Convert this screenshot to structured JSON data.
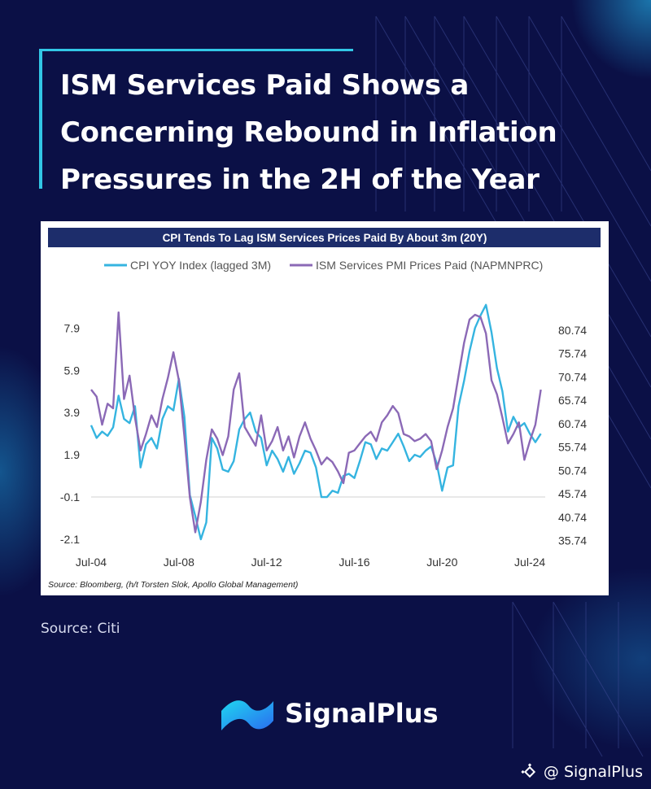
{
  "headline": "ISM Services Paid Shows a\nConcerning Rebound in Inflation\nPressures in the 2H of the Year",
  "source_caption": "Source: Citi",
  "brand": {
    "name": "SignalPlus",
    "logo_icon": "signalplus-wave-logo-icon"
  },
  "handle": {
    "icon": "binance-square-icon",
    "text": "@ SignalPlus"
  },
  "colors": {
    "background": "#0b1046",
    "accent": "#32c7e6",
    "chart_header_bg": "#1d2d6b",
    "cpi_series": "#35b4e0",
    "ism_series": "#8b69b6"
  },
  "chart_data": {
    "type": "line",
    "title": "CPI Tends To Lag ISM Services Prices Paid By About 3m (20Y)",
    "footnote": "Source: Bloomberg, (h/t Torsten Slok, Apollo Global Management)",
    "x_ticks": [
      "Jul-04",
      "Jul-08",
      "Jul-12",
      "Jul-16",
      "Jul-20",
      "Jul-24"
    ],
    "x_range": [
      2004.5,
      2025.2
    ],
    "left_axis": {
      "ticks": [
        "7.9",
        "5.9",
        "3.9",
        "1.9",
        "-0.1",
        "-2.1"
      ],
      "range": [
        -2.6,
        9.8
      ]
    },
    "right_axis": {
      "ticks": [
        "80.74",
        "75.74",
        "70.74",
        "65.74",
        "60.74",
        "55.74",
        "50.74",
        "45.74",
        "40.74",
        "35.74"
      ],
      "range": [
        33.74,
        89.74
      ]
    },
    "legend_position": "top",
    "series": [
      {
        "name": "CPI YOY Index (lagged 3M)",
        "axis": "left",
        "points": [
          [
            2004.5,
            3.3
          ],
          [
            2004.75,
            2.7
          ],
          [
            2005.0,
            3.0
          ],
          [
            2005.25,
            2.8
          ],
          [
            2005.5,
            3.2
          ],
          [
            2005.75,
            4.7
          ],
          [
            2006.0,
            3.6
          ],
          [
            2006.25,
            3.4
          ],
          [
            2006.5,
            4.2
          ],
          [
            2006.75,
            1.3
          ],
          [
            2007.0,
            2.4
          ],
          [
            2007.25,
            2.7
          ],
          [
            2007.5,
            2.2
          ],
          [
            2007.75,
            3.6
          ],
          [
            2008.0,
            4.2
          ],
          [
            2008.25,
            4.0
          ],
          [
            2008.5,
            5.5
          ],
          [
            2008.75,
            3.7
          ],
          [
            2009.0,
            0.0
          ],
          [
            2009.25,
            -1.0
          ],
          [
            2009.5,
            -2.1
          ],
          [
            2009.75,
            -1.3
          ],
          [
            2010.0,
            2.7
          ],
          [
            2010.25,
            2.2
          ],
          [
            2010.5,
            1.2
          ],
          [
            2010.75,
            1.1
          ],
          [
            2011.0,
            1.6
          ],
          [
            2011.25,
            3.1
          ],
          [
            2011.5,
            3.6
          ],
          [
            2011.75,
            3.9
          ],
          [
            2012.0,
            3.0
          ],
          [
            2012.25,
            2.7
          ],
          [
            2012.5,
            1.4
          ],
          [
            2012.75,
            2.1
          ],
          [
            2013.0,
            1.7
          ],
          [
            2013.25,
            1.1
          ],
          [
            2013.5,
            1.8
          ],
          [
            2013.75,
            1.0
          ],
          [
            2014.0,
            1.5
          ],
          [
            2014.25,
            2.1
          ],
          [
            2014.5,
            2.0
          ],
          [
            2014.75,
            1.3
          ],
          [
            2015.0,
            -0.1
          ],
          [
            2015.25,
            -0.1
          ],
          [
            2015.5,
            0.2
          ],
          [
            2015.75,
            0.1
          ],
          [
            2016.0,
            0.9
          ],
          [
            2016.25,
            1.0
          ],
          [
            2016.5,
            0.8
          ],
          [
            2016.75,
            1.6
          ],
          [
            2017.0,
            2.5
          ],
          [
            2017.25,
            2.4
          ],
          [
            2017.5,
            1.7
          ],
          [
            2017.75,
            2.2
          ],
          [
            2018.0,
            2.1
          ],
          [
            2018.25,
            2.5
          ],
          [
            2018.5,
            2.9
          ],
          [
            2018.75,
            2.3
          ],
          [
            2019.0,
            1.6
          ],
          [
            2019.25,
            1.9
          ],
          [
            2019.5,
            1.8
          ],
          [
            2019.75,
            2.1
          ],
          [
            2020.0,
            2.3
          ],
          [
            2020.25,
            1.5
          ],
          [
            2020.5,
            0.2
          ],
          [
            2020.75,
            1.3
          ],
          [
            2021.0,
            1.4
          ],
          [
            2021.25,
            4.2
          ],
          [
            2021.5,
            5.4
          ],
          [
            2021.75,
            6.8
          ],
          [
            2022.0,
            7.9
          ],
          [
            2022.25,
            8.5
          ],
          [
            2022.5,
            9.0
          ],
          [
            2022.75,
            7.7
          ],
          [
            2023.0,
            6.0
          ],
          [
            2023.25,
            4.9
          ],
          [
            2023.5,
            3.0
          ],
          [
            2023.75,
            3.7
          ],
          [
            2024.0,
            3.2
          ],
          [
            2024.25,
            3.4
          ],
          [
            2024.5,
            2.9
          ],
          [
            2024.75,
            2.5
          ],
          [
            2025.0,
            2.9
          ]
        ]
      },
      {
        "name": "ISM Services PMI Prices Paid (NAPMNPRC)",
        "axis": "right",
        "points": [
          [
            2004.5,
            68.0
          ],
          [
            2004.75,
            66.5
          ],
          [
            2005.0,
            60.5
          ],
          [
            2005.25,
            65.0
          ],
          [
            2005.5,
            64.0
          ],
          [
            2005.75,
            84.5
          ],
          [
            2006.0,
            66.0
          ],
          [
            2006.25,
            71.0
          ],
          [
            2006.5,
            62.0
          ],
          [
            2006.75,
            55.0
          ],
          [
            2007.0,
            58.5
          ],
          [
            2007.25,
            62.5
          ],
          [
            2007.5,
            60.0
          ],
          [
            2007.75,
            66.0
          ],
          [
            2008.0,
            70.5
          ],
          [
            2008.25,
            76.0
          ],
          [
            2008.5,
            70.0
          ],
          [
            2008.75,
            58.0
          ],
          [
            2009.0,
            45.0
          ],
          [
            2009.25,
            37.5
          ],
          [
            2009.5,
            44.0
          ],
          [
            2009.75,
            53.0
          ],
          [
            2010.0,
            59.5
          ],
          [
            2010.25,
            57.5
          ],
          [
            2010.5,
            54.0
          ],
          [
            2010.75,
            58.0
          ],
          [
            2011.0,
            68.0
          ],
          [
            2011.25,
            71.5
          ],
          [
            2011.5,
            60.0
          ],
          [
            2011.75,
            58.0
          ],
          [
            2012.0,
            56.0
          ],
          [
            2012.25,
            62.5
          ],
          [
            2012.5,
            55.0
          ],
          [
            2012.75,
            57.0
          ],
          [
            2013.0,
            60.0
          ],
          [
            2013.25,
            55.0
          ],
          [
            2013.5,
            58.0
          ],
          [
            2013.75,
            53.5
          ],
          [
            2014.0,
            58.0
          ],
          [
            2014.25,
            61.0
          ],
          [
            2014.5,
            57.5
          ],
          [
            2014.75,
            55.0
          ],
          [
            2015.0,
            52.0
          ],
          [
            2015.25,
            53.5
          ],
          [
            2015.5,
            52.5
          ],
          [
            2015.75,
            50.5
          ],
          [
            2016.0,
            48.0
          ],
          [
            2016.25,
            54.5
          ],
          [
            2016.5,
            55.0
          ],
          [
            2016.75,
            56.5
          ],
          [
            2017.0,
            58.0
          ],
          [
            2017.25,
            59.0
          ],
          [
            2017.5,
            57.0
          ],
          [
            2017.75,
            61.0
          ],
          [
            2018.0,
            62.5
          ],
          [
            2018.25,
            64.5
          ],
          [
            2018.5,
            63.0
          ],
          [
            2018.75,
            58.5
          ],
          [
            2019.0,
            58.0
          ],
          [
            2019.25,
            57.0
          ],
          [
            2019.5,
            57.5
          ],
          [
            2019.75,
            58.5
          ],
          [
            2020.0,
            57.0
          ],
          [
            2020.25,
            51.0
          ],
          [
            2020.5,
            55.0
          ],
          [
            2020.75,
            60.0
          ],
          [
            2021.0,
            64.0
          ],
          [
            2021.25,
            71.0
          ],
          [
            2021.5,
            78.0
          ],
          [
            2021.75,
            83.0
          ],
          [
            2022.0,
            84.0
          ],
          [
            2022.25,
            83.5
          ],
          [
            2022.5,
            80.0
          ],
          [
            2022.75,
            70.0
          ],
          [
            2023.0,
            67.0
          ],
          [
            2023.25,
            62.0
          ],
          [
            2023.5,
            56.5
          ],
          [
            2023.75,
            58.5
          ],
          [
            2024.0,
            61.0
          ],
          [
            2024.25,
            53.0
          ],
          [
            2024.5,
            57.0
          ],
          [
            2024.75,
            60.5
          ],
          [
            2025.0,
            68.0
          ]
        ]
      }
    ]
  }
}
